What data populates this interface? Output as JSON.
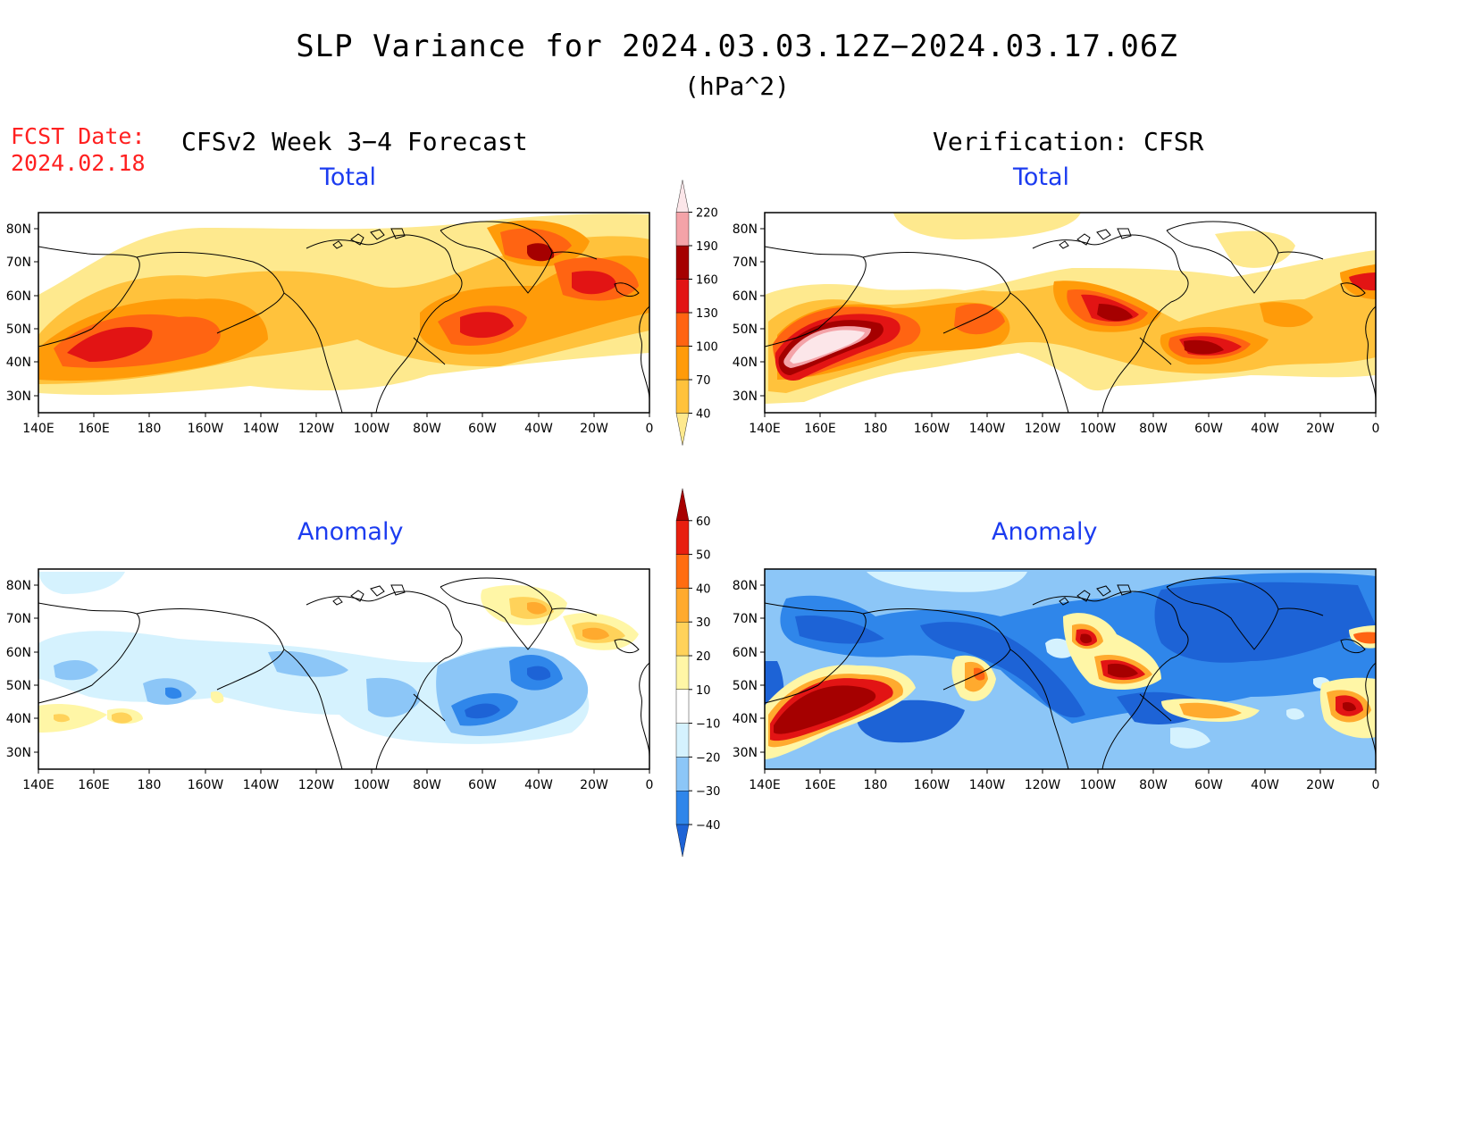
{
  "title": "SLP Variance for 2024.03.03.12Z−2024.03.17.06Z",
  "units": "(hPa^2)",
  "fcst_date_label": "FCST Date:",
  "fcst_date": "2024.02.18",
  "left_column_title": "CFSv2 Week 3−4 Forecast",
  "right_column_title": "Verification: CFSR",
  "panels": {
    "forecast_total": {
      "title": "Total"
    },
    "verification_total": {
      "title": "Total"
    },
    "forecast_anomaly": {
      "title": "Anomaly"
    },
    "verification_anomaly": {
      "title": "Anomaly"
    }
  },
  "axes": {
    "lat_labels": [
      "80N",
      "70N",
      "60N",
      "50N",
      "40N",
      "30N"
    ],
    "lon_labels": [
      "140E",
      "160E",
      "180",
      "160W",
      "140W",
      "120W",
      "100W",
      "80W",
      "60W",
      "40W",
      "20W",
      "0"
    ]
  },
  "colorbars": {
    "total": {
      "levels": [
        "40",
        "70",
        "100",
        "130",
        "160",
        "190",
        "220"
      ],
      "colors": [
        "#fee98e",
        "#ffc23c",
        "#ff9b09",
        "#ff6412",
        "#e21414",
        "#a50000",
        "#f4a3a8",
        "#fce6e9"
      ]
    },
    "anomaly": {
      "levels": [
        "−40",
        "−30",
        "−20",
        "−10",
        "10",
        "20",
        "30",
        "40",
        "50",
        "60"
      ],
      "colors": [
        "#1d63d6",
        "#2f86ea",
        "#8cc6f7",
        "#d5f2fe",
        "#ffffff",
        "#fff6a6",
        "#ffd25a",
        "#ffaa2e",
        "#ff6d11",
        "#e81f0f",
        "#a80000"
      ]
    }
  },
  "colors": {
    "title_text": "#000000",
    "fcst_date": "#ff2020",
    "panel_title": "#1c3cf0"
  }
}
